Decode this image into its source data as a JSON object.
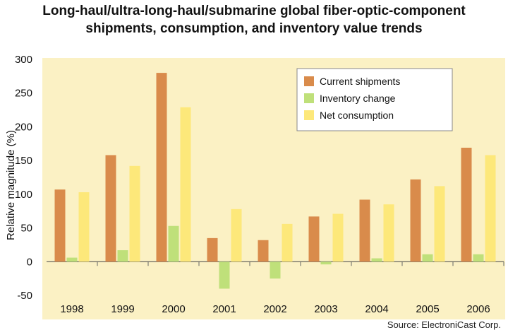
{
  "title_line1": "Long-haul/ultra-long-haul/submarine global fiber-optic-component",
  "title_line2": "shipments, consumption, and inventory value trends",
  "source": "Source: ElectroniCast Corp.",
  "colors": {
    "plot_bg": "#fbf1c4",
    "current_shipments": "#d98b4b",
    "inventory_change": "#bfe07a",
    "net_consumption": "#fde87a"
  },
  "chart_data": {
    "type": "bar",
    "title": "Long-haul/ultra-long-haul/submarine global fiber-optic-component shipments, consumption, and inventory value trends",
    "xlabel": "",
    "ylabel": "Relative magnitude (%)",
    "ylim": [
      -50,
      300
    ],
    "yticks": [
      300,
      250,
      200,
      150,
      100,
      50,
      0,
      -50
    ],
    "categories": [
      "1998",
      "1999",
      "2000",
      "2001",
      "2002",
      "2003",
      "2004",
      "2005",
      "2006"
    ],
    "series": [
      {
        "name": "Current shipments",
        "values": [
          107,
          158,
          280,
          35,
          32,
          67,
          92,
          122,
          169
        ]
      },
      {
        "name": "Inventory change",
        "values": [
          6,
          17,
          53,
          -40,
          -25,
          -4,
          5,
          11,
          11
        ]
      },
      {
        "name": "Net consumption",
        "values": [
          103,
          142,
          229,
          78,
          56,
          71,
          85,
          112,
          158
        ]
      }
    ],
    "legend_position": "top-right",
    "grid": false
  }
}
